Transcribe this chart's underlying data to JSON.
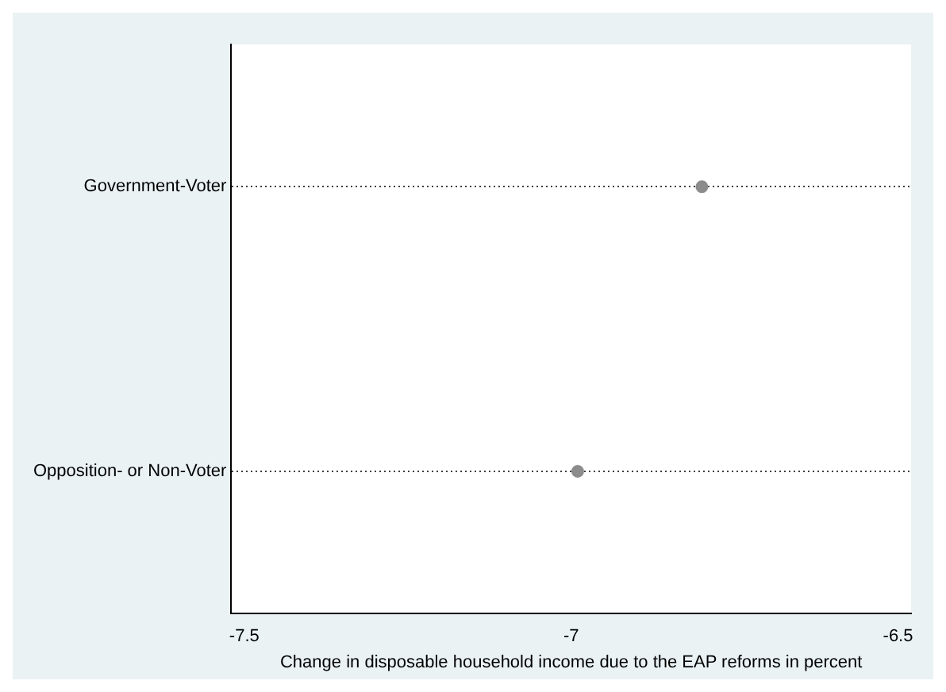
{
  "chart_data": {
    "type": "scatter",
    "orientation": "horizontal",
    "categories": [
      "Government-Voter",
      "Opposition- or Non-Voter"
    ],
    "series": [
      {
        "color": "#8c8c8c",
        "values": [
          -6.8,
          -6.99
        ]
      }
    ],
    "xlabel": "Change in disposable household income due to the EAP reforms in percent",
    "xlim": [
      -7.52,
      -6.48
    ],
    "xticks": [
      -7.5,
      -7,
      -6.5
    ],
    "grid": "y",
    "marker": "circle",
    "legend": false
  }
}
